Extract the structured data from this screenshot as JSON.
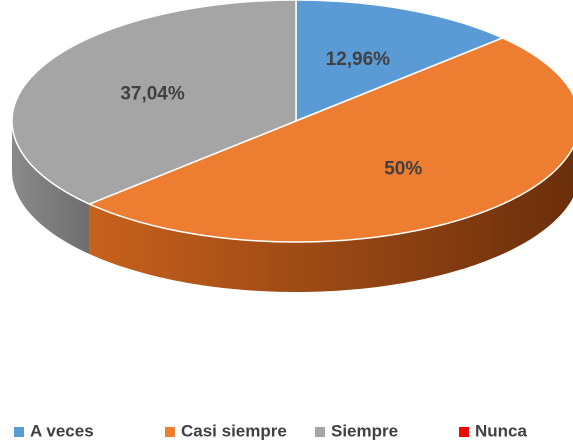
{
  "chart_data": {
    "type": "pie3d",
    "categories": [
      "A veces",
      "Casi siempre",
      "Siempre",
      "Nunca"
    ],
    "values": [
      12.96,
      50,
      37.04,
      0
    ],
    "value_labels": [
      "12,96%",
      "50%",
      "37,04%",
      null
    ],
    "colors": [
      "#5b9bd5",
      "#ed7d31",
      "#a5a5a5",
      "#ff0000"
    ],
    "legend": "bottom"
  }
}
